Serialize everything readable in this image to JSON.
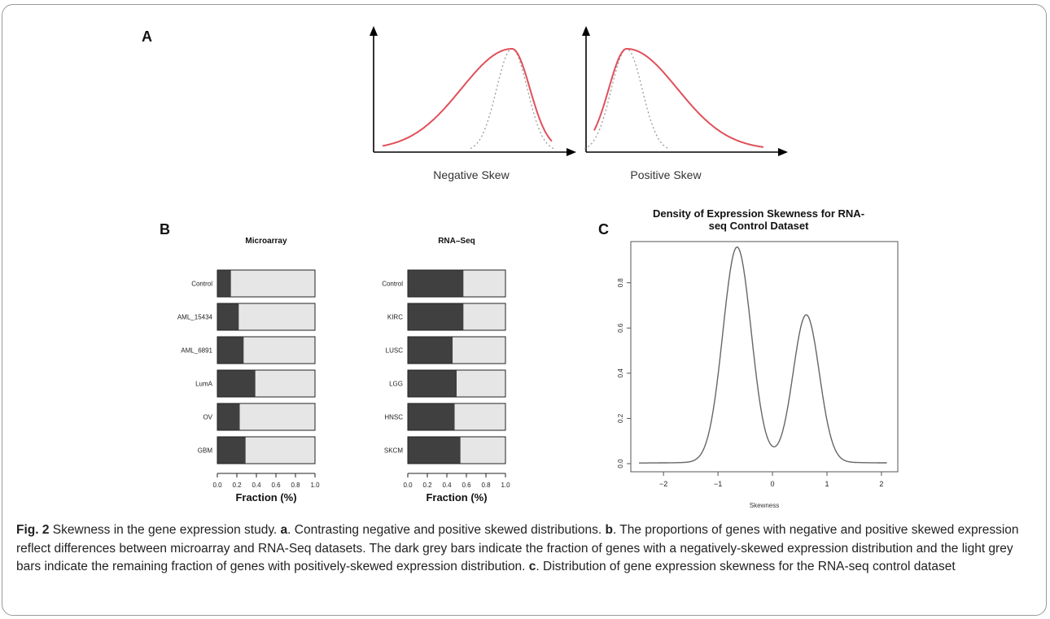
{
  "panels": {
    "a": "A",
    "b": "B",
    "c": "C"
  },
  "panel_a": {
    "neg_label": "Negative Skew",
    "pos_label": "Positive Skew",
    "curve_color": "#e0505a",
    "dotted_color": "#9a9a9a"
  },
  "chart_data": [
    {
      "type": "bar",
      "stacked": true,
      "orientation": "horizontal",
      "title": "Microarray",
      "xlabel": "Fraction (%)",
      "xlim": [
        0,
        1
      ],
      "xticks": [
        "0.0",
        "0.2",
        "0.4",
        "0.6",
        "0.8",
        "1.0"
      ],
      "categories": [
        "Control",
        "AML_15434",
        "AML_6891",
        "LumA",
        "OV",
        "GBM"
      ],
      "series": [
        {
          "values": [
            0.14,
            0.22,
            0.27,
            0.39,
            0.23,
            0.29
          ],
          "color": "#404040"
        },
        {
          "values": [
            0.86,
            0.78,
            0.73,
            0.61,
            0.77,
            0.71
          ],
          "color": "#e6e6e6"
        }
      ]
    },
    {
      "type": "bar",
      "stacked": true,
      "orientation": "horizontal",
      "title": "RNA–Seq",
      "xlabel": "Fraction (%)",
      "xlim": [
        0,
        1
      ],
      "xticks": [
        "0.0",
        "0.2",
        "0.4",
        "0.6",
        "0.8",
        "1.0"
      ],
      "categories": [
        "Control",
        "KIRC",
        "LUSC",
        "LGG",
        "HNSC",
        "SKCM"
      ],
      "series": [
        {
          "values": [
            0.57,
            0.57,
            0.46,
            0.5,
            0.48,
            0.54
          ],
          "color": "#404040"
        },
        {
          "values": [
            0.43,
            0.43,
            0.54,
            0.5,
            0.52,
            0.46
          ],
          "color": "#e6e6e6"
        }
      ]
    },
    {
      "type": "line",
      "title": "Density of Expression Skewness for RNA-seq Control Dataset",
      "title_lines": [
        "Density of Expression Skewness for RNA-",
        "seq Control Dataset"
      ],
      "xlabel": "Skewness",
      "ylabel": "",
      "xlim": [
        -2.6,
        2.3
      ],
      "ylim": [
        0,
        0.95
      ],
      "xticks": [
        -2,
        -1,
        0,
        1,
        2
      ],
      "yticks": [
        "0.0",
        "0.2",
        "0.4",
        "0.6",
        "0.8"
      ],
      "peaks": [
        {
          "x": -0.65,
          "y": 0.95
        },
        {
          "x": 0.62,
          "y": 0.65
        }
      ],
      "valley": {
        "x": 0.0,
        "y": 0.03
      }
    }
  ],
  "caption": {
    "fig": "Fig. 2",
    "text1": " Skewness in the gene expression study. ",
    "a": "a",
    "text2": ". Contrasting negative and positive skewed distributions. ",
    "b": "b",
    "text3": ". The proportions of genes with negative and positive skewed expression reflect differences between microarray and RNA-Seq datasets. The dark grey bars indicate the fraction of genes with a negatively-skewed expression distribution and the light grey bars indicate the remaining fraction of genes with positively-skewed expression distribution. ",
    "c": "c",
    "text4": ". Distribution of gene expression skewness for the RNA-seq control dataset"
  }
}
